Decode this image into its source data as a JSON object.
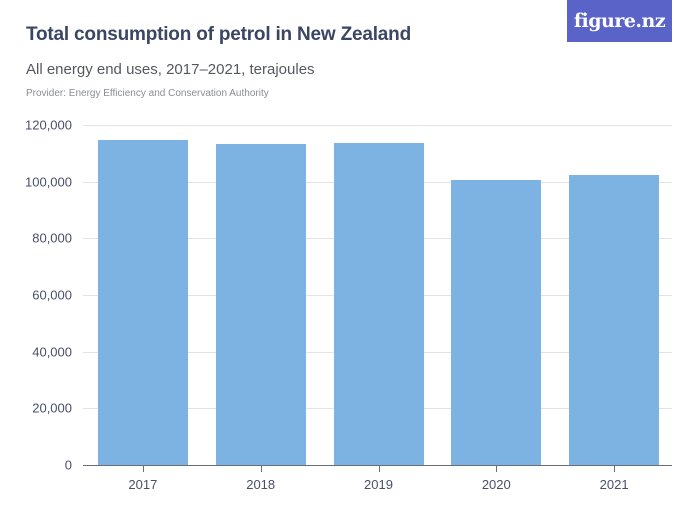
{
  "header": {
    "title": "Total consumption of petrol in New Zealand",
    "subtitle": "All energy end uses, 2017–2021, terajoules",
    "provider": "Provider: Energy Efficiency and Conservation Authority",
    "logo": "figure.nz"
  },
  "colors": {
    "bar": "#7db3e2",
    "logo_bg": "#5a63c8",
    "title": "#3b4664"
  },
  "axis": {
    "y_ticks": [
      "120,000",
      "100,000",
      "80,000",
      "60,000",
      "40,000",
      "20,000",
      "0"
    ],
    "x_ticks": [
      "2017",
      "2018",
      "2019",
      "2020",
      "2021"
    ]
  },
  "chart_data": {
    "type": "bar",
    "title": "Total consumption of petrol in New Zealand",
    "subtitle": "All energy end uses, 2017–2021, terajoules",
    "source": "Provider: Energy Efficiency and Conservation Authority",
    "categories": [
      "2017",
      "2018",
      "2019",
      "2020",
      "2021"
    ],
    "values": [
      114700,
      113300,
      113600,
      100600,
      102200
    ],
    "xlabel": "",
    "ylabel": "Terajoules",
    "ylim": [
      0,
      120000
    ],
    "yticks": [
      0,
      20000,
      40000,
      60000,
      80000,
      100000,
      120000
    ],
    "grid": true,
    "legend": null
  }
}
